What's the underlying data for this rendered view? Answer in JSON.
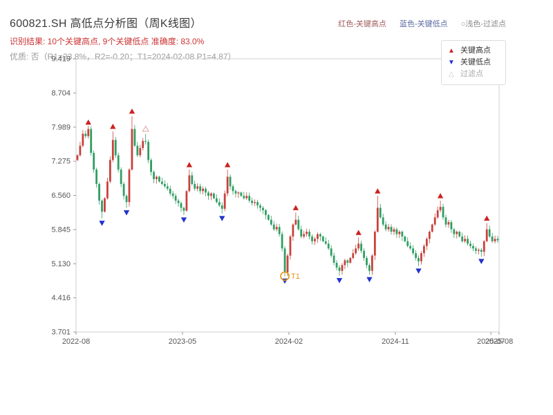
{
  "header": {
    "title": "600821.SH 高低点分析图（周K线图）",
    "legend_inline": {
      "high": {
        "text": "红色-关键高点",
        "color": "#a25b5b"
      },
      "low": {
        "text": "蓝色-关键低点",
        "color": "#5b6ba2"
      },
      "filtered": {
        "text": "○浅色-过滤点",
        "color": "#8a8a8a"
      }
    },
    "result_line": "识别结果: 10个关键高点, 9个关键低点  准确度: 83.0%",
    "quality_line": "优质: 否（R1=23.8%，R2=-0.20；T1=2024-02-08 P1=4.87）"
  },
  "legend_box": {
    "items": [
      {
        "glyph": "▲",
        "label": "关键高点",
        "color": "#cc2222",
        "label_color": "#333333"
      },
      {
        "glyph": "▼",
        "label": "关键低点",
        "color": "#2234cc",
        "label_color": "#333333"
      },
      {
        "glyph": "△",
        "label": "过滤点",
        "color": "#c4c4c4",
        "label_color": "#aaaaaa"
      }
    ]
  },
  "chart_data": {
    "type": "candlestick",
    "ylim": [
      3.701,
      9.419
    ],
    "y_ticks": [
      "3.701",
      "4.416",
      "5.130",
      "5.845",
      "6.560",
      "7.275",
      "7.989",
      "8.704",
      "9.419"
    ],
    "x_ticks": [
      {
        "week": 0,
        "label": "2022-08"
      },
      {
        "week": 39,
        "label": "2023-05"
      },
      {
        "week": 78,
        "label": "2024-02"
      },
      {
        "week": 117,
        "label": "2024-11"
      },
      {
        "week": 152,
        "label": "2025-07"
      },
      {
        "week": 155,
        "label": "2025-08"
      }
    ],
    "open_first": 7.3,
    "closes": [
      7.4,
      7.6,
      7.85,
      7.8,
      7.95,
      7.45,
      7.1,
      6.8,
      6.45,
      6.22,
      6.5,
      6.85,
      7.3,
      7.72,
      7.4,
      7.1,
      6.8,
      6.55,
      6.42,
      7.1,
      7.95,
      7.6,
      7.4,
      7.55,
      7.7,
      7.68,
      7.3,
      7.05,
      6.9,
      6.95,
      6.85,
      6.8,
      6.75,
      6.7,
      6.6,
      6.55,
      6.45,
      6.4,
      6.3,
      6.24,
      6.65,
      6.98,
      6.8,
      6.7,
      6.75,
      6.65,
      6.7,
      6.62,
      6.55,
      6.6,
      6.5,
      6.42,
      6.35,
      6.28,
      6.6,
      6.95,
      6.75,
      6.65,
      6.6,
      6.62,
      6.55,
      6.5,
      6.55,
      6.45,
      6.4,
      6.42,
      6.35,
      6.3,
      6.25,
      6.15,
      6.05,
      5.95,
      5.85,
      5.9,
      5.75,
      5.45,
      4.95,
      5.3,
      5.7,
      5.95,
      6.05,
      5.85,
      5.7,
      5.75,
      5.8,
      5.7,
      5.6,
      5.65,
      5.75,
      5.7,
      5.6,
      5.55,
      5.45,
      5.3,
      5.15,
      5.05,
      4.98,
      5.1,
      5.2,
      5.15,
      5.25,
      5.35,
      5.45,
      5.55,
      5.4,
      5.25,
      5.1,
      4.98,
      5.3,
      5.8,
      6.3,
      6.1,
      5.95,
      5.85,
      5.9,
      5.8,
      5.85,
      5.75,
      5.8,
      5.7,
      5.6,
      5.5,
      5.45,
      5.35,
      5.25,
      5.18,
      5.35,
      5.5,
      5.65,
      5.8,
      5.95,
      6.1,
      6.25,
      6.32,
      6.1,
      5.95,
      6.0,
      5.85,
      5.75,
      5.8,
      5.7,
      5.6,
      5.65,
      5.55,
      5.5,
      5.45,
      5.4,
      5.42,
      5.38,
      5.6,
      5.85,
      5.7,
      5.6,
      5.65,
      5.62
    ],
    "key_highs": [
      {
        "week": 4,
        "price": 7.99
      },
      {
        "week": 13,
        "price": 7.9
      },
      {
        "week": 20,
        "price": 8.22
      },
      {
        "week": 41,
        "price": 7.1
      },
      {
        "week": 55,
        "price": 7.1
      },
      {
        "week": 80,
        "price": 6.2
      },
      {
        "week": 103,
        "price": 5.68
      },
      {
        "week": 110,
        "price": 6.55
      },
      {
        "week": 133,
        "price": 6.45
      },
      {
        "week": 150,
        "price": 5.98
      }
    ],
    "key_lows": [
      {
        "week": 9,
        "price": 6.08
      },
      {
        "week": 18,
        "price": 6.3
      },
      {
        "week": 39,
        "price": 6.15
      },
      {
        "week": 53,
        "price": 6.18
      },
      {
        "week": 76,
        "price": 4.87
      },
      {
        "week": 96,
        "price": 4.88
      },
      {
        "week": 107,
        "price": 4.9
      },
      {
        "week": 125,
        "price": 5.08
      },
      {
        "week": 148,
        "price": 5.28
      }
    ],
    "filtered_points": [
      {
        "week": 25,
        "price": 7.85,
        "kind": "high"
      }
    ],
    "annotation": {
      "label": "T1",
      "week": 76,
      "price": 4.87,
      "color": "#e8930c"
    },
    "colors": {
      "up": "#c8413b",
      "down": "#2f9e62",
      "marker_high": "#cc2222",
      "marker_low": "#2234cc",
      "filtered": "#e0a0a0",
      "axis": "#cfcfcf",
      "tick_text": "#555555"
    }
  }
}
